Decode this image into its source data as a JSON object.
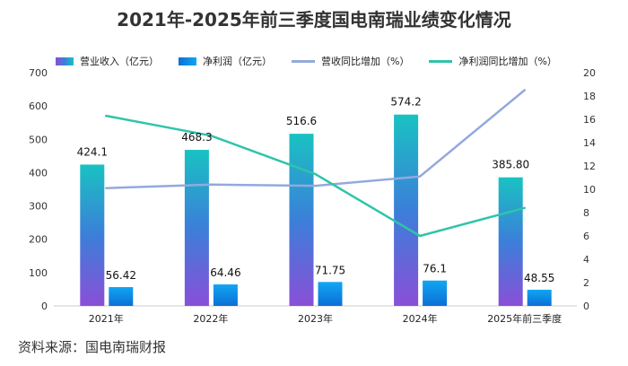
{
  "chart_data": {
    "type": "bar",
    "title": "2021年-2025年前三季度国电南瑞业绩变化情况",
    "categories": [
      "2021年",
      "2022年",
      "2023年",
      "2024年",
      "2025年前三季度"
    ],
    "series": [
      {
        "name": "营业收入（亿元）",
        "kind": "bar",
        "axis": "left",
        "values": [
          424.1,
          468.3,
          516.6,
          574.2,
          385.8
        ],
        "labels": [
          "424.1",
          "468.3",
          "516.6",
          "574.2",
          "385.80"
        ]
      },
      {
        "name": "净利润（亿元）",
        "kind": "bar",
        "axis": "left",
        "values": [
          56.42,
          64.46,
          71.75,
          76.1,
          48.55
        ],
        "labels": [
          "56.42",
          "64.46",
          "71.75",
          "76.1",
          "48.55"
        ]
      },
      {
        "name": "营收同比增加（%）",
        "kind": "line",
        "axis": "right",
        "values": [
          10.1,
          10.4,
          10.3,
          11.1,
          18.5
        ]
      },
      {
        "name": "净利润同比增加（%）",
        "kind": "line",
        "axis": "right",
        "values": [
          16.3,
          14.6,
          11.3,
          6.0,
          8.4
        ]
      }
    ],
    "y_left": {
      "min": 0,
      "max": 700,
      "step": 100
    },
    "y_right": {
      "min": 0,
      "max": 20,
      "step": 2
    },
    "legend_position": "top",
    "grid": false
  },
  "colors": {
    "revenue_top": "#19c2c2",
    "revenue_mid": "#3b7fd9",
    "revenue_bottom": "#8a4fd8",
    "profit_top": "#11a6f2",
    "profit_bottom": "#0b6fd6",
    "revenue_growth_line": "#93a9dd",
    "profit_growth_line": "#2fc4a9"
  },
  "source": "资料来源：国电南瑞财报"
}
